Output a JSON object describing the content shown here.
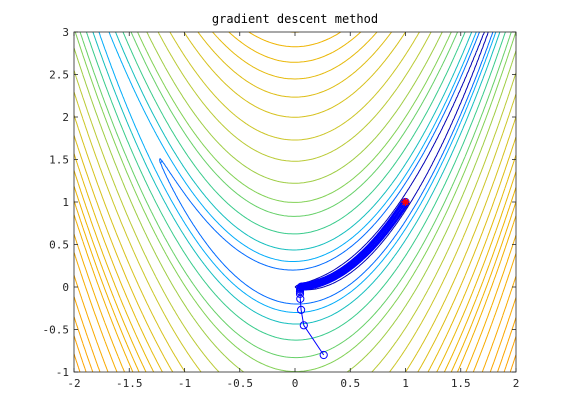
{
  "chart_data": {
    "type": "contour",
    "title": "gradient descent method",
    "xlabel": "",
    "ylabel": "",
    "xlim": [
      -2,
      2
    ],
    "ylim": [
      -1,
      3
    ],
    "x_ticks": [
      -2,
      -1.5,
      -1,
      -0.5,
      0,
      0.5,
      1,
      1.5,
      2
    ],
    "y_ticks": [
      -1,
      -0.5,
      0,
      0.5,
      1,
      1.5,
      2,
      2.5,
      3
    ],
    "x_tick_labels": [
      "-2",
      "-1.5",
      "-1",
      "-0.5",
      "0",
      "0.5",
      "1",
      "1.5",
      "2"
    ],
    "y_tick_labels": [
      "-1",
      "-0.5",
      "0",
      "0.5",
      "1",
      "1.5",
      "2",
      "2.5",
      "3"
    ],
    "grid": false,
    "function": "(1-x)^2 + 100*(y-x^2)^2",
    "contour_levels": [
      1,
      5,
      10,
      20,
      40,
      70,
      100,
      150,
      220,
      300,
      400,
      500,
      600,
      700,
      800,
      900,
      1000,
      1150,
      1300,
      1500,
      1700,
      1900,
      2100,
      2300,
      2500
    ],
    "contour_colormap": [
      "#0000b4",
      "#0037ff",
      "#00aaff",
      "#1ec8a0",
      "#78d25a",
      "#c8c82d",
      "#f0b400",
      "#ffa000"
    ],
    "path": {
      "color": "#0000ff",
      "marker": "circle",
      "start": [
        0.26,
        -0.8
      ],
      "points": [
        [
          0.26,
          -0.8
        ],
        [
          0.08,
          -0.45
        ],
        [
          0.055,
          -0.27
        ],
        [
          0.048,
          -0.14
        ],
        [
          0.045,
          -0.08
        ],
        [
          0.045,
          -0.05
        ],
        [
          0.046,
          -0.03
        ],
        [
          0.048,
          -0.015
        ],
        [
          0.05,
          -0.005
        ]
      ],
      "curve": {
        "x_from": 0.05,
        "x_to": 1.0,
        "relation": "y = x^2"
      }
    },
    "end_point": {
      "x": 1,
      "y": 1,
      "color": "#ff0000",
      "marker": "star"
    }
  }
}
